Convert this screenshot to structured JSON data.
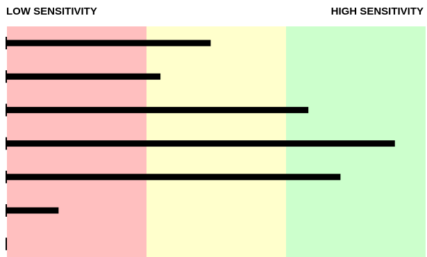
{
  "header": {
    "left_label": "LOW SENSITIVITY",
    "right_label": "HIGH SENSITIVITY"
  },
  "colors": {
    "zone_low": "#ffbfbf",
    "zone_mid": "#ffffcc",
    "zone_high": "#ccffcc",
    "bar": "#000000"
  },
  "chart_data": {
    "type": "bar",
    "orientation": "horizontal",
    "title": "",
    "xlabel": "",
    "ylabel": "",
    "xlim": [
      0,
      3
    ],
    "zones": [
      {
        "label": "LOW SENSITIVITY",
        "from": 0,
        "to": 1
      },
      {
        "label": "",
        "from": 1,
        "to": 2
      },
      {
        "label": "HIGH SENSITIVITY",
        "from": 2,
        "to": 3
      }
    ],
    "categories": [
      "",
      "",
      "",
      "",
      "",
      "",
      ""
    ],
    "values": [
      1.46,
      1.1,
      2.16,
      2.78,
      2.39,
      0.37,
      0
    ],
    "grid": false,
    "legend": "none"
  }
}
